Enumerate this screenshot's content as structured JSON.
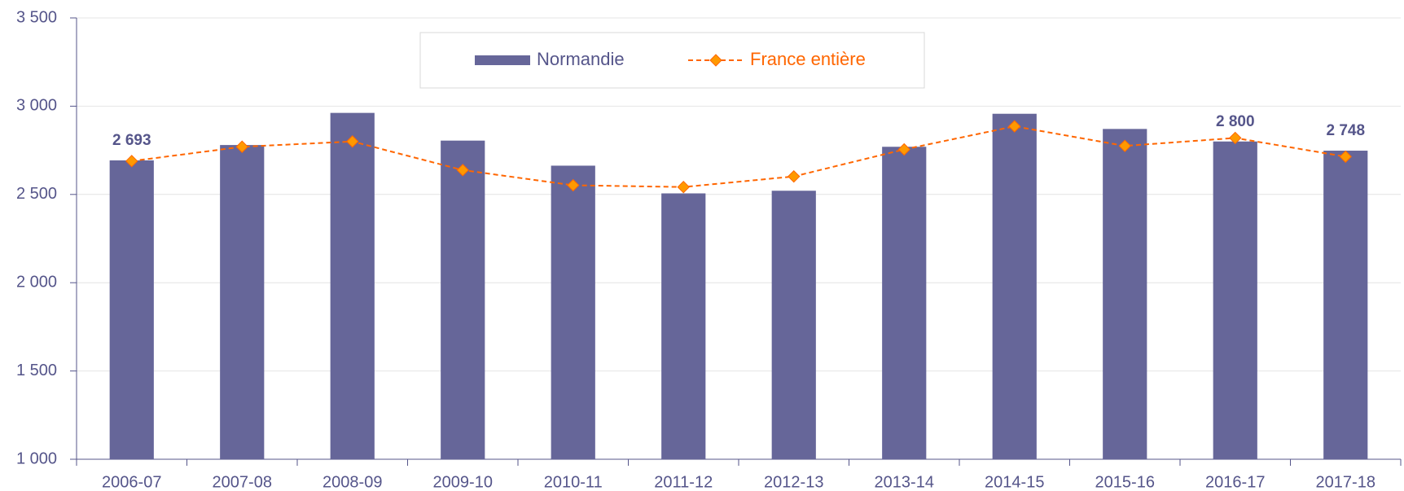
{
  "chart_data": {
    "type": "bar_line",
    "categories": [
      "2006-07",
      "2007-08",
      "2008-09",
      "2009-10",
      "2010-11",
      "2011-12",
      "2012-13",
      "2013-14",
      "2014-15",
      "2015-16",
      "2016-17",
      "2017-18"
    ],
    "series": [
      {
        "name": "Normandie",
        "type": "bar",
        "color": "#666699",
        "values": [
          2693,
          2780,
          2962,
          2805,
          2663,
          2506,
          2521,
          2770,
          2957,
          2871,
          2800,
          2748
        ],
        "value_labels": [
          "2 693",
          null,
          null,
          null,
          null,
          null,
          null,
          null,
          null,
          null,
          "2 800",
          "2 748"
        ]
      },
      {
        "name": "France entière",
        "type": "line",
        "color": "#ff6600",
        "marker_color": "#ff9900",
        "values": [
          2689,
          2770,
          2800,
          2638,
          2552,
          2542,
          2602,
          2755,
          2886,
          2775,
          2820,
          2714
        ]
      }
    ],
    "ylim": [
      1000,
      3500
    ],
    "yticks": [
      {
        "value": 1000,
        "label": "1 000"
      },
      {
        "value": 1500,
        "label": "1 500"
      },
      {
        "value": 2000,
        "label": "2 000"
      },
      {
        "value": 2500,
        "label": "2 500"
      },
      {
        "value": 3000,
        "label": "3 000"
      },
      {
        "value": 3500,
        "label": "3 500"
      }
    ],
    "grid": true,
    "legend": "top"
  }
}
